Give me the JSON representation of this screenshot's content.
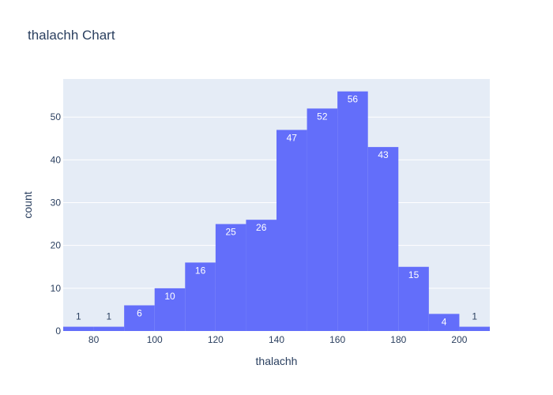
{
  "chart_data": {
    "type": "bar",
    "title": "thalachh Chart",
    "xlabel": "thalachh",
    "ylabel": "count",
    "bins": [
      {
        "x0": 70,
        "x1": 80,
        "count": 1
      },
      {
        "x0": 80,
        "x1": 90,
        "count": 1
      },
      {
        "x0": 90,
        "x1": 100,
        "count": 6
      },
      {
        "x0": 100,
        "x1": 110,
        "count": 10
      },
      {
        "x0": 110,
        "x1": 120,
        "count": 16
      },
      {
        "x0": 120,
        "x1": 130,
        "count": 25
      },
      {
        "x0": 130,
        "x1": 140,
        "count": 26
      },
      {
        "x0": 140,
        "x1": 150,
        "count": 47
      },
      {
        "x0": 150,
        "x1": 160,
        "count": 52
      },
      {
        "x0": 160,
        "x1": 170,
        "count": 56
      },
      {
        "x0": 170,
        "x1": 180,
        "count": 43
      },
      {
        "x0": 180,
        "x1": 190,
        "count": 15
      },
      {
        "x0": 190,
        "x1": 200,
        "count": 4
      },
      {
        "x0": 200,
        "x1": 210,
        "count": 1
      }
    ],
    "xlim": [
      70,
      210
    ],
    "ylim": [
      0,
      58.9
    ],
    "xticks": [
      80,
      100,
      120,
      140,
      160,
      180,
      200
    ],
    "yticks": [
      0,
      10,
      20,
      30,
      40,
      50
    ],
    "grid": true,
    "colors": {
      "bar": "#636efa",
      "plot_bg": "#e5ecf6",
      "grid": "#ffffff",
      "text": "#2a3f5f"
    }
  }
}
